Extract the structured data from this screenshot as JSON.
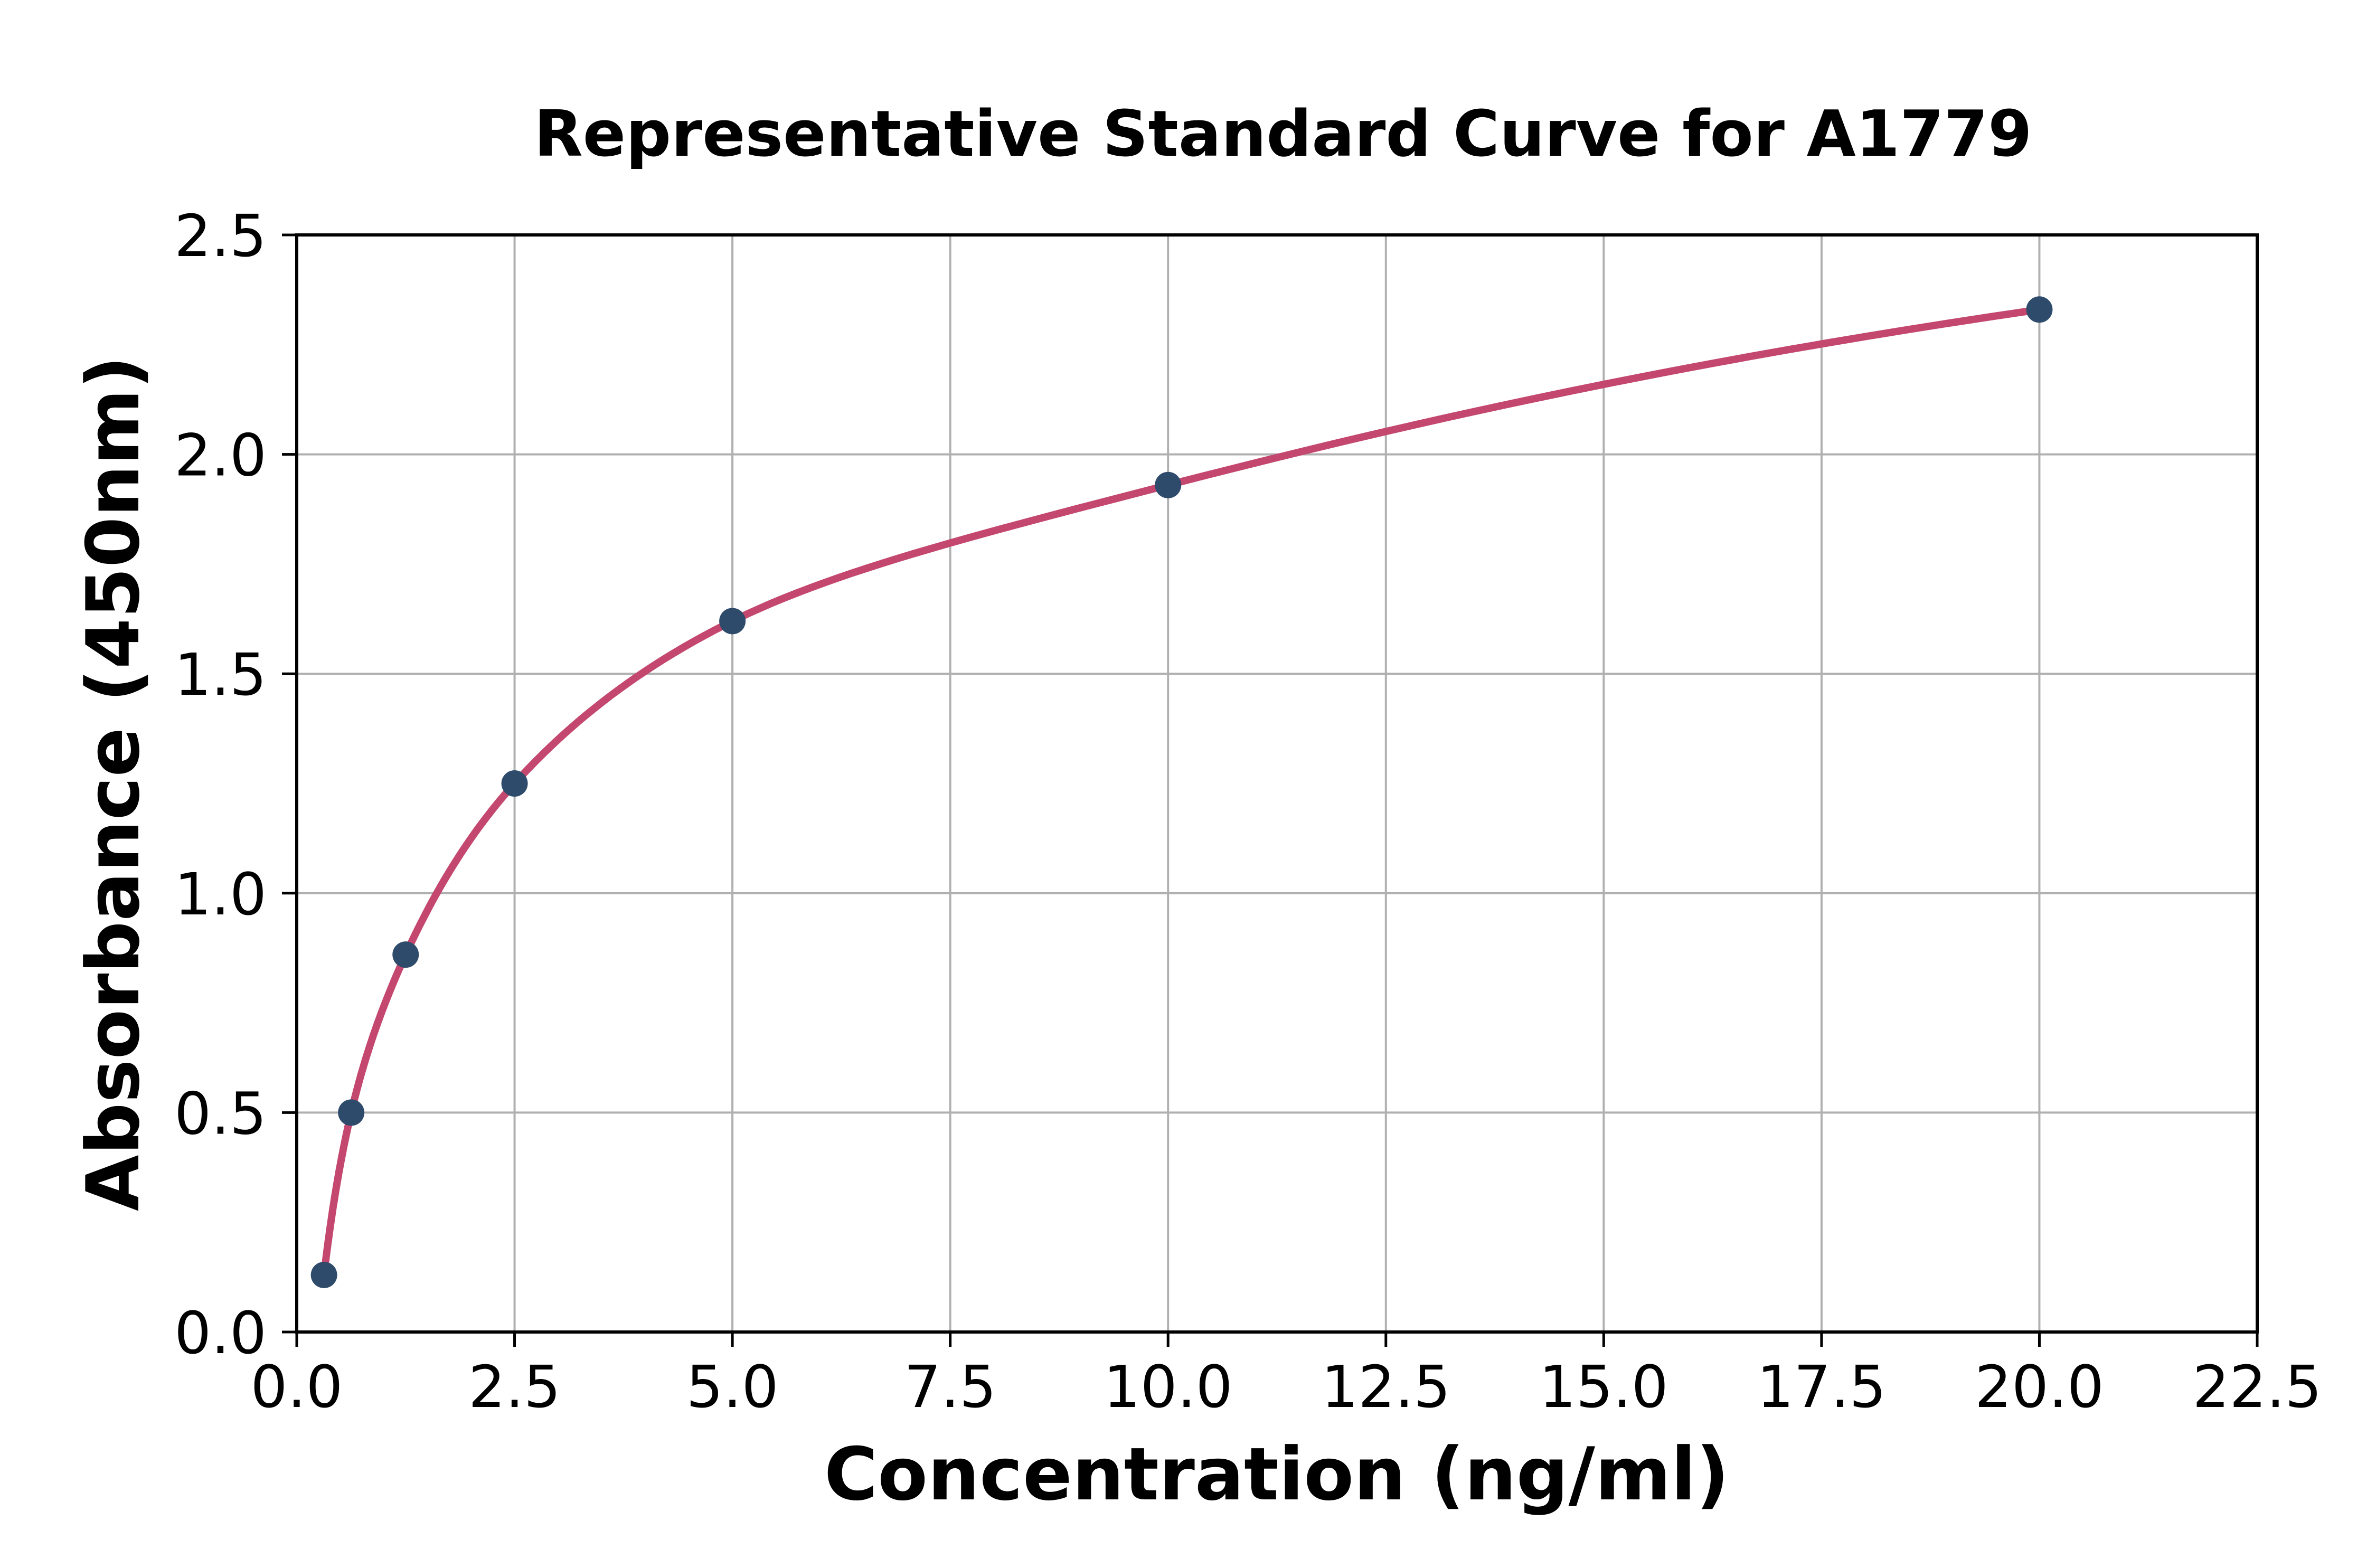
{
  "chart_data": {
    "type": "scatter",
    "title": "Representative Standard Curve for A1779",
    "xlabel": "Concentration (ng/ml)",
    "ylabel": "Absorbance (450nm)",
    "x": [
      0.313,
      0.625,
      1.25,
      2.5,
      5.0,
      10.0,
      20.0
    ],
    "y": [
      0.13,
      0.5,
      0.86,
      1.25,
      1.62,
      1.93,
      2.33
    ],
    "xlim": [
      0,
      22.5
    ],
    "ylim": [
      0,
      2.5
    ],
    "xticks": [
      0.0,
      2.5,
      5.0,
      7.5,
      10.0,
      12.5,
      15.0,
      17.5,
      20.0,
      22.5
    ],
    "xtick_labels": [
      "0.0",
      "2.5",
      "5.0",
      "7.5",
      "10.0",
      "12.5",
      "15.0",
      "17.5",
      "20.0",
      "22.5"
    ],
    "yticks": [
      0.0,
      0.5,
      1.0,
      1.5,
      2.0,
      2.5
    ],
    "ytick_labels": [
      "0.0",
      "0.5",
      "1.0",
      "1.5",
      "2.0",
      "2.5"
    ],
    "grid": true,
    "legend": "none",
    "curve_style": "smooth fit through points, drawn from first to last data point",
    "colors": {
      "line": "#c3476e",
      "marker": "#2f4b6b",
      "grid": "#b0b0b0",
      "spine": "#000000",
      "background": "#ffffff"
    }
  }
}
